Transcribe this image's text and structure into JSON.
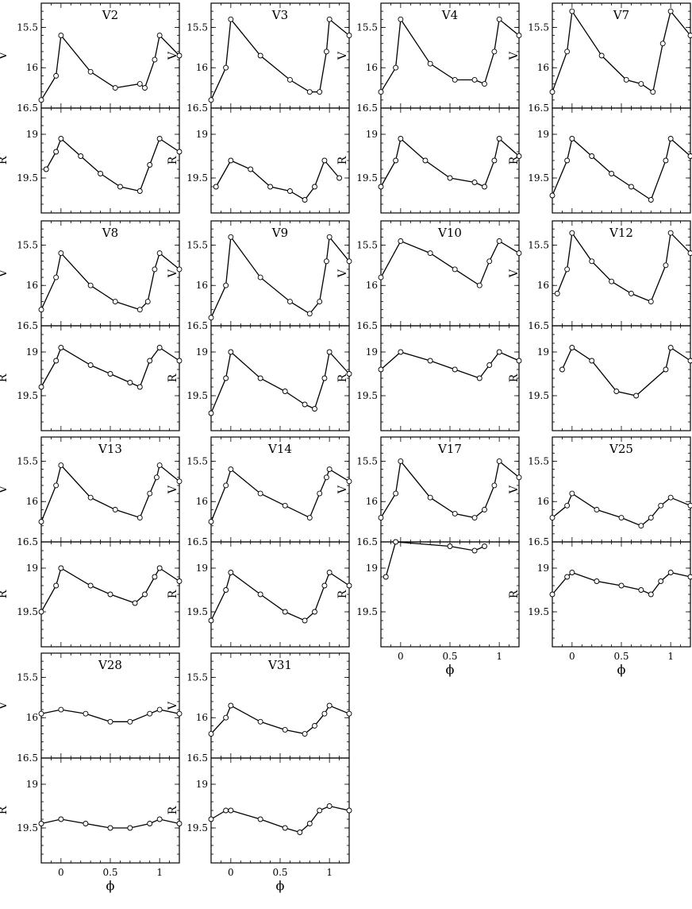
{
  "chart_data": {
    "type": "scatter",
    "xlabel": "ϕ",
    "xlim": [
      -0.2,
      1.2
    ],
    "x_ticks": [
      "0",
      "0.5",
      "1"
    ],
    "v_band": {
      "ylabel": "V",
      "ylim": [
        16.5,
        15.2
      ],
      "y_ticks": [
        "15.5",
        "16",
        "16.5"
      ],
      "inverted": true
    },
    "r_band": {
      "ylabel": "R",
      "ylim": [
        19.9,
        18.7
      ],
      "y_ticks": [
        "19",
        "19.5"
      ],
      "inverted": true
    },
    "stars": [
      {
        "name": "V2",
        "v_curve": {
          "phase": [
            -0.2,
            -0.05,
            0.0,
            0.3,
            0.55,
            0.8,
            0.85,
            0.95,
            1.0,
            1.2
          ],
          "mag": [
            16.4,
            16.1,
            15.6,
            16.05,
            16.25,
            16.2,
            16.25,
            15.9,
            15.6,
            15.85
          ]
        },
        "r_curve": {
          "phase": [
            -0.15,
            -0.05,
            0.0,
            0.2,
            0.4,
            0.6,
            0.8,
            0.9,
            1.0,
            1.2
          ],
          "mag": [
            19.4,
            19.2,
            19.05,
            19.25,
            19.45,
            19.6,
            19.65,
            19.35,
            19.05,
            19.2
          ]
        }
      },
      {
        "name": "V3",
        "v_curve": {
          "phase": [
            -0.2,
            -0.05,
            0.0,
            0.3,
            0.6,
            0.8,
            0.9,
            0.97,
            1.0,
            1.2
          ],
          "mag": [
            16.4,
            16.0,
            15.4,
            15.85,
            16.15,
            16.3,
            16.3,
            15.8,
            15.4,
            15.6
          ]
        },
        "r_curve": {
          "phase": [
            -0.15,
            0.0,
            0.2,
            0.4,
            0.6,
            0.75,
            0.85,
            0.95,
            1.1
          ],
          "mag": [
            19.6,
            19.3,
            19.4,
            19.6,
            19.65,
            19.75,
            19.6,
            19.3,
            19.5
          ]
        }
      },
      {
        "name": "V4",
        "v_curve": {
          "phase": [
            -0.2,
            -0.05,
            0.0,
            0.3,
            0.55,
            0.75,
            0.85,
            0.95,
            1.0,
            1.2
          ],
          "mag": [
            16.3,
            16.0,
            15.4,
            15.95,
            16.15,
            16.15,
            16.2,
            15.8,
            15.4,
            15.6
          ]
        },
        "r_curve": {
          "phase": [
            -0.2,
            -0.05,
            0.0,
            0.25,
            0.5,
            0.75,
            0.85,
            0.95,
            1.0,
            1.2
          ],
          "mag": [
            19.6,
            19.3,
            19.05,
            19.3,
            19.5,
            19.55,
            19.6,
            19.3,
            19.05,
            19.25
          ]
        }
      },
      {
        "name": "V7",
        "v_curve": {
          "phase": [
            -0.2,
            -0.05,
            0.0,
            0.3,
            0.55,
            0.7,
            0.82,
            0.92,
            1.0,
            1.2
          ],
          "mag": [
            16.3,
            15.8,
            15.3,
            15.85,
            16.15,
            16.2,
            16.3,
            15.7,
            15.3,
            15.6
          ]
        },
        "r_curve": {
          "phase": [
            -0.2,
            -0.05,
            0.0,
            0.2,
            0.4,
            0.6,
            0.8,
            0.95,
            1.0,
            1.2
          ],
          "mag": [
            19.7,
            19.3,
            19.05,
            19.25,
            19.45,
            19.6,
            19.75,
            19.3,
            19.05,
            19.25
          ]
        }
      },
      {
        "name": "V8",
        "v_curve": {
          "phase": [
            -0.2,
            -0.05,
            0.0,
            0.3,
            0.55,
            0.8,
            0.88,
            0.95,
            1.0,
            1.2
          ],
          "mag": [
            16.3,
            15.9,
            15.6,
            16.0,
            16.2,
            16.3,
            16.2,
            15.8,
            15.6,
            15.8
          ]
        },
        "r_curve": {
          "phase": [
            -0.2,
            -0.05,
            0.0,
            0.3,
            0.5,
            0.7,
            0.8,
            0.9,
            1.0,
            1.2
          ],
          "mag": [
            19.4,
            19.1,
            18.95,
            19.15,
            19.25,
            19.35,
            19.4,
            19.1,
            18.95,
            19.1
          ]
        }
      },
      {
        "name": "V9",
        "v_curve": {
          "phase": [
            -0.2,
            -0.05,
            0.0,
            0.3,
            0.6,
            0.8,
            0.9,
            0.97,
            1.0,
            1.2
          ],
          "mag": [
            16.4,
            16.0,
            15.4,
            15.9,
            16.2,
            16.35,
            16.2,
            15.7,
            15.4,
            15.7
          ]
        },
        "r_curve": {
          "phase": [
            -0.2,
            -0.05,
            0.0,
            0.3,
            0.55,
            0.75,
            0.85,
            0.95,
            1.0,
            1.2
          ],
          "mag": [
            19.7,
            19.3,
            19.0,
            19.3,
            19.45,
            19.6,
            19.65,
            19.3,
            19.0,
            19.25
          ]
        }
      },
      {
        "name": "V10",
        "v_curve": {
          "phase": [
            -0.2,
            0.0,
            0.3,
            0.55,
            0.8,
            0.9,
            1.0,
            1.2
          ],
          "mag": [
            15.9,
            15.45,
            15.6,
            15.8,
            16.0,
            15.7,
            15.45,
            15.6
          ]
        },
        "r_curve": {
          "phase": [
            -0.2,
            0.0,
            0.3,
            0.55,
            0.8,
            0.9,
            1.0,
            1.2
          ],
          "mag": [
            19.2,
            19.0,
            19.1,
            19.2,
            19.3,
            19.15,
            19.0,
            19.1
          ]
        }
      },
      {
        "name": "V12",
        "v_curve": {
          "phase": [
            -0.15,
            -0.05,
            0.0,
            0.2,
            0.4,
            0.6,
            0.8,
            0.95,
            1.0,
            1.2
          ],
          "mag": [
            16.1,
            15.8,
            15.35,
            15.7,
            15.95,
            16.1,
            16.2,
            15.75,
            15.35,
            15.6
          ]
        },
        "r_curve": {
          "phase": [
            -0.1,
            0.0,
            0.2,
            0.45,
            0.65,
            0.95,
            1.0,
            1.2
          ],
          "mag": [
            19.2,
            18.95,
            19.1,
            19.45,
            19.5,
            19.2,
            18.95,
            19.1
          ]
        }
      },
      {
        "name": "V13",
        "v_curve": {
          "phase": [
            -0.2,
            -0.05,
            0.0,
            0.3,
            0.55,
            0.8,
            0.9,
            0.97,
            1.0,
            1.2
          ],
          "mag": [
            16.25,
            15.8,
            15.55,
            15.95,
            16.1,
            16.2,
            15.9,
            15.7,
            15.55,
            15.75
          ]
        },
        "r_curve": {
          "phase": [
            -0.2,
            -0.05,
            0.0,
            0.3,
            0.5,
            0.75,
            0.85,
            0.95,
            1.0,
            1.2
          ],
          "mag": [
            19.5,
            19.2,
            19.0,
            19.2,
            19.3,
            19.4,
            19.3,
            19.1,
            19.0,
            19.15
          ]
        }
      },
      {
        "name": "V14",
        "v_curve": {
          "phase": [
            -0.2,
            -0.05,
            0.0,
            0.3,
            0.55,
            0.8,
            0.9,
            0.97,
            1.0,
            1.2
          ],
          "mag": [
            16.25,
            15.8,
            15.6,
            15.9,
            16.05,
            16.2,
            15.9,
            15.7,
            15.6,
            15.75
          ]
        },
        "r_curve": {
          "phase": [
            -0.2,
            -0.05,
            0.0,
            0.3,
            0.55,
            0.75,
            0.85,
            0.95,
            1.0,
            1.2
          ],
          "mag": [
            19.6,
            19.25,
            19.05,
            19.3,
            19.5,
            19.6,
            19.5,
            19.2,
            19.05,
            19.2
          ]
        }
      },
      {
        "name": "V17",
        "v_curve": {
          "phase": [
            -0.2,
            -0.05,
            0.0,
            0.3,
            0.55,
            0.75,
            0.85,
            0.95,
            1.0,
            1.2
          ],
          "mag": [
            16.2,
            15.9,
            15.5,
            15.95,
            16.15,
            16.2,
            16.1,
            15.8,
            15.5,
            15.7
          ]
        },
        "r_curve": {
          "phase": [
            -0.15,
            -0.05,
            0.0,
            0.25,
            0.5,
            0.75,
            0.85,
            0.95,
            1.0,
            1.2
          ],
          "mag": [
            19.1,
            18.7,
            18.45,
            18.6,
            18.75,
            18.8,
            18.75,
            18.6,
            18.45,
            18.55
          ]
        }
      },
      {
        "name": "V25",
        "v_curve": {
          "phase": [
            -0.2,
            -0.05,
            0.0,
            0.25,
            0.5,
            0.7,
            0.8,
            0.9,
            1.0,
            1.2
          ],
          "mag": [
            16.2,
            16.05,
            15.9,
            16.1,
            16.2,
            16.3,
            16.2,
            16.05,
            15.95,
            16.05
          ]
        },
        "r_curve": {
          "phase": [
            -0.2,
            -0.05,
            0.0,
            0.25,
            0.5,
            0.7,
            0.8,
            0.9,
            1.0,
            1.2
          ],
          "mag": [
            19.3,
            19.1,
            19.05,
            19.15,
            19.2,
            19.25,
            19.3,
            19.15,
            19.05,
            19.1
          ]
        }
      },
      {
        "name": "V28",
        "v_curve": {
          "phase": [
            -0.2,
            0.0,
            0.25,
            0.5,
            0.7,
            0.9,
            1.0,
            1.2
          ],
          "mag": [
            15.95,
            15.9,
            15.95,
            16.05,
            16.05,
            15.95,
            15.9,
            15.95
          ]
        },
        "r_curve": {
          "phase": [
            -0.2,
            0.0,
            0.25,
            0.5,
            0.7,
            0.9,
            1.0,
            1.2
          ],
          "mag": [
            19.45,
            19.4,
            19.45,
            19.5,
            19.5,
            19.45,
            19.4,
            19.45
          ]
        }
      },
      {
        "name": "V31",
        "v_curve": {
          "phase": [
            -0.2,
            -0.05,
            0.0,
            0.3,
            0.55,
            0.75,
            0.85,
            0.95,
            1.0,
            1.2
          ],
          "mag": [
            16.2,
            16.0,
            15.85,
            16.05,
            16.15,
            16.2,
            16.1,
            15.95,
            15.85,
            15.95
          ]
        },
        "r_curve": {
          "phase": [
            -0.2,
            -0.05,
            0.0,
            0.3,
            0.55,
            0.7,
            0.8,
            0.9,
            1.0,
            1.2
          ],
          "mag": [
            19.4,
            19.3,
            19.3,
            19.4,
            19.5,
            19.55,
            19.45,
            19.3,
            19.25,
            19.3
          ]
        }
      }
    ]
  }
}
